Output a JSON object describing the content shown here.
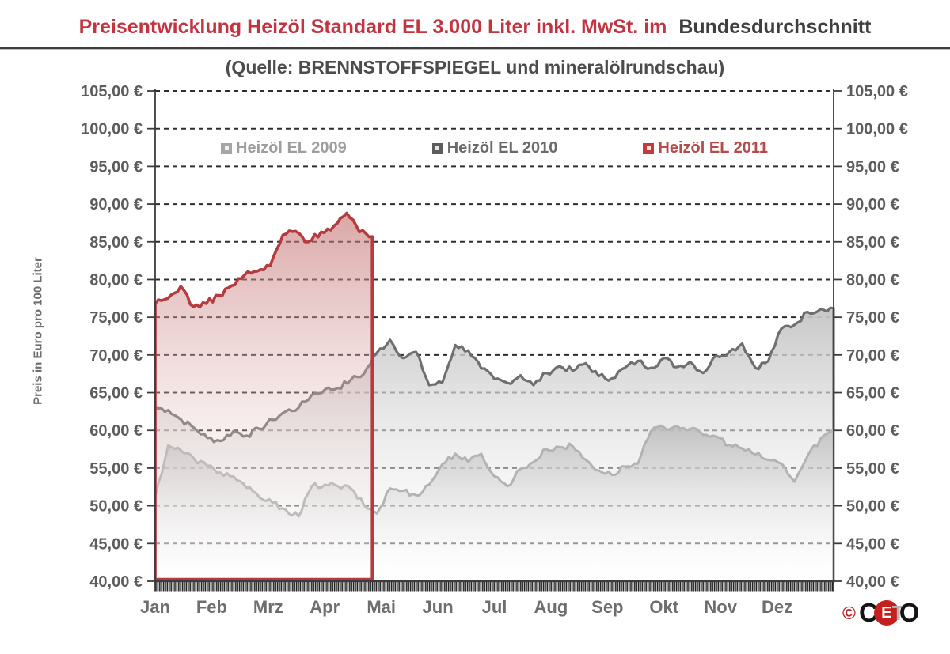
{
  "title": {
    "highlight": "Preisentwicklung Heizöl Standard EL 3.000 Liter inkl. MwSt. im",
    "rest": "Bundesdurchschnitt"
  },
  "subtitle": "(Quelle: BRENNSTOFFSPIEGEL und mineralölrundschau)",
  "legend": {
    "items": [
      {
        "label": "Heizöl EL 2009",
        "color": "#a6a6a6",
        "text_color": "#9e9e9e"
      },
      {
        "label": "Heizöl EL 2010",
        "color": "#5d5d5d",
        "text_color": "#6a6a6a"
      },
      {
        "label": "Heizöl EL 2011",
        "color": "#c13b3b",
        "text_color": "#b84a4a"
      }
    ]
  },
  "logo": {
    "copyright": "©",
    "letters": [
      "C",
      "E",
      "T",
      "O"
    ]
  },
  "chart_data": {
    "type": "area",
    "title": "Preisentwicklung Heizöl Standard EL 3.000 Liter inkl. MwSt. im Bundesdurchschnitt",
    "subtitle": "(Quelle: BRENNSTOFFSPIEGEL und mineralölrundschau)",
    "ylabel": "Preis in Euro pro 100 Liter",
    "ylim": [
      40,
      105
    ],
    "ytick_step": 5,
    "y_ticks": [
      40,
      45,
      50,
      55,
      60,
      65,
      70,
      75,
      80,
      85,
      90,
      95,
      100,
      105
    ],
    "y_tick_labels": [
      "40,00 €",
      "45,00 €",
      "50,00 €",
      "55,00 €",
      "60,00 €",
      "65,00 €",
      "70,00 €",
      "75,00 €",
      "80,00 €",
      "85,00 €",
      "90,00 €",
      "95,00 €",
      "100,00 €",
      "105,00 €"
    ],
    "months": [
      "Jan",
      "Feb",
      "Mrz",
      "Apr",
      "Mai",
      "Jun",
      "Jul",
      "Aug",
      "Sep",
      "Okt",
      "Nov",
      "Dez"
    ],
    "grid": "horizontal dashed",
    "legend_position": "top center",
    "x_unit": "weekly values, Jan through Dez",
    "series": [
      {
        "name": "Heizöl EL 2010",
        "color": "#6f6f6f",
        "fill_from": "rgba(196,196,196,0.95)",
        "fill_to": "rgba(255,255,255,0.2)",
        "line_width": 3.2,
        "months_covered": 12,
        "bottom_inset": 0,
        "values": [
          63.0,
          62.7,
          61.4,
          60.3,
          59.0,
          58.6,
          59.9,
          59.3,
          60.2,
          61.4,
          62.5,
          63.0,
          64.7,
          65.4,
          65.6,
          66.7,
          67.5,
          70.3,
          72.0,
          69.6,
          70.4,
          66.0,
          66.3,
          71.3,
          70.6,
          68.2,
          66.8,
          66.3,
          67.3,
          66.0,
          67.6,
          68.5,
          67.9,
          68.9,
          67.2,
          66.9,
          68.3,
          69.2,
          68.3,
          69.6,
          68.4,
          69.1,
          67.6,
          69.9,
          70.4,
          71.5,
          68.3,
          69.2,
          73.5,
          74.0,
          75.7,
          76.1,
          76.2
        ]
      },
      {
        "name": "Heizöl EL 2009",
        "color": "#b3b3b3",
        "fill_from": "rgba(189,189,189,0.9)",
        "fill_to": "rgba(255,255,255,0.15)",
        "line_width": 3.0,
        "months_covered": 12,
        "bottom_inset": 0,
        "values": [
          51.2,
          58.0,
          57.3,
          56.2,
          55.3,
          54.4,
          53.9,
          52.4,
          51.1,
          50.4,
          49.5,
          48.6,
          52.6,
          52.8,
          52.6,
          52.3,
          50.1,
          49.0,
          52.3,
          52.0,
          51.4,
          52.8,
          55.5,
          56.9,
          55.8,
          56.9,
          53.9,
          52.6,
          54.9,
          55.8,
          57.5,
          57.8,
          57.9,
          56.1,
          54.7,
          54.1,
          55.2,
          55.6,
          59.9,
          60.4,
          60.6,
          60.2,
          59.4,
          59.2,
          58.1,
          57.6,
          56.8,
          56.1,
          55.6,
          53.2,
          56.6,
          58.9,
          60.1
        ]
      },
      {
        "name": "Heizöl EL 2011",
        "color": "#b63b3e",
        "fill_from": "rgba(196,112,112,0.62)",
        "fill_to": "rgba(255,255,255,0.08)",
        "line_width": 3.6,
        "months_covered": 3.84,
        "bottom_inset": 3,
        "values": [
          76.8,
          77.5,
          79.1,
          76.4,
          76.8,
          77.9,
          79.2,
          80.6,
          81.1,
          81.8,
          85.9,
          86.4,
          85.0,
          86.3,
          87.1,
          88.8,
          86.3,
          85.7
        ]
      }
    ]
  }
}
